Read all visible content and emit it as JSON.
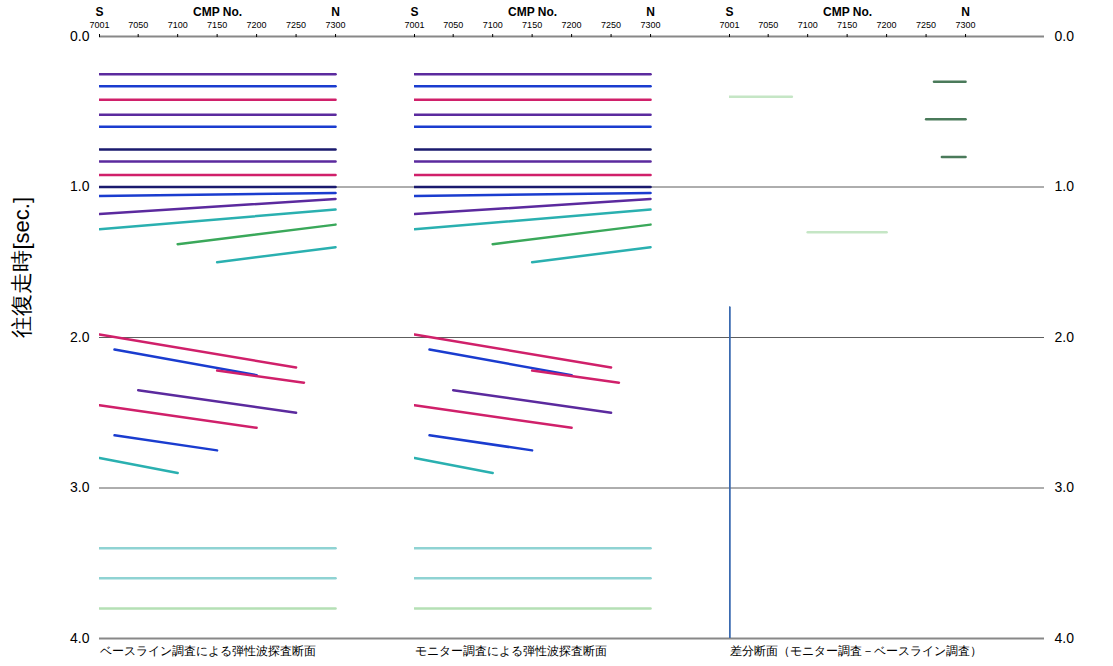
{
  "chart_data": {
    "type": "seismic_section",
    "y_label": "往復走時[sec.]",
    "ylim": [
      0,
      4
    ],
    "yticks": [
      {
        "value": 0,
        "label": "0.0"
      },
      {
        "value": 1,
        "label": "1.0"
      },
      {
        "value": 2,
        "label": "2.0"
      },
      {
        "value": 3,
        "label": "3.0"
      },
      {
        "value": 4,
        "label": "4.0"
      }
    ],
    "grid": true,
    "x_label": "CMP No.",
    "xlim": [
      7001,
      7400
    ],
    "xticks": [
      7001,
      7050,
      7100,
      7150,
      7200,
      7250,
      7300
    ],
    "x_direction": [
      "S",
      "N"
    ],
    "panels": [
      {
        "caption": "ベースライン調査による弾性波探査断面",
        "reflectors": [
          {
            "cmp": [
              7001,
              7300
            ],
            "time": [
              0.25,
              0.25
            ],
            "color": "#5b2a9e"
          },
          {
            "cmp": [
              7001,
              7300
            ],
            "time": [
              0.33,
              0.33
            ],
            "color": "#1a3ccf"
          },
          {
            "cmp": [
              7001,
              7300
            ],
            "time": [
              0.42,
              0.42
            ],
            "color": "#d0206a"
          },
          {
            "cmp": [
              7001,
              7300
            ],
            "time": [
              0.52,
              0.52
            ],
            "color": "#5b2a9e"
          },
          {
            "cmp": [
              7001,
              7300
            ],
            "time": [
              0.6,
              0.6
            ],
            "color": "#1a3ccf"
          },
          {
            "cmp": [
              7001,
              7300
            ],
            "time": [
              0.75,
              0.75
            ],
            "color": "#1a1a6e"
          },
          {
            "cmp": [
              7001,
              7300
            ],
            "time": [
              0.83,
              0.83
            ],
            "color": "#5b2a9e"
          },
          {
            "cmp": [
              7001,
              7300
            ],
            "time": [
              0.92,
              0.92
            ],
            "color": "#d0206a"
          },
          {
            "cmp": [
              7001,
              7300
            ],
            "time": [
              1.0,
              1.0
            ],
            "color": "#1a1a6e"
          },
          {
            "cmp": [
              7001,
              7300
            ],
            "time": [
              1.06,
              1.04
            ],
            "color": "#1a3ccf"
          },
          {
            "cmp": [
              7001,
              7300
            ],
            "time": [
              1.18,
              1.08
            ],
            "color": "#5b2a9e"
          },
          {
            "cmp": [
              7001,
              7300
            ],
            "time": [
              1.28,
              1.15
            ],
            "color": "#2ab0b0"
          },
          {
            "cmp": [
              7100,
              7300
            ],
            "time": [
              1.38,
              1.25
            ],
            "color": "#3aa85a"
          },
          {
            "cmp": [
              7150,
              7300
            ],
            "time": [
              1.5,
              1.4
            ],
            "color": "#2ab0b0"
          },
          {
            "cmp": [
              7001,
              7250
            ],
            "time": [
              1.98,
              2.2
            ],
            "color": "#d0206a"
          },
          {
            "cmp": [
              7020,
              7200
            ],
            "time": [
              2.08,
              2.25
            ],
            "color": "#1a3ccf"
          },
          {
            "cmp": [
              7150,
              7260
            ],
            "time": [
              2.22,
              2.3
            ],
            "color": "#d0206a"
          },
          {
            "cmp": [
              7050,
              7250
            ],
            "time": [
              2.35,
              2.5
            ],
            "color": "#5b2a9e"
          },
          {
            "cmp": [
              7001,
              7200
            ],
            "time": [
              2.45,
              2.6
            ],
            "color": "#d0206a"
          },
          {
            "cmp": [
              7020,
              7150
            ],
            "time": [
              2.65,
              2.75
            ],
            "color": "#1a3ccf"
          },
          {
            "cmp": [
              7001,
              7100
            ],
            "time": [
              2.8,
              2.9
            ],
            "color": "#2ab0b0"
          },
          {
            "cmp": [
              7001,
              7300
            ],
            "time": [
              3.4,
              3.4
            ],
            "color": "#8fd3d3"
          },
          {
            "cmp": [
              7001,
              7300
            ],
            "time": [
              3.6,
              3.6
            ],
            "color": "#8fd3d3"
          },
          {
            "cmp": [
              7001,
              7300
            ],
            "time": [
              3.8,
              3.8
            ],
            "color": "#b5e0b5"
          }
        ]
      },
      {
        "caption": "モニター調査による弾性波探査断面",
        "reflectors": [
          {
            "cmp": [
              7001,
              7300
            ],
            "time": [
              0.25,
              0.25
            ],
            "color": "#5b2a9e"
          },
          {
            "cmp": [
              7001,
              7300
            ],
            "time": [
              0.33,
              0.33
            ],
            "color": "#1a3ccf"
          },
          {
            "cmp": [
              7001,
              7300
            ],
            "time": [
              0.42,
              0.42
            ],
            "color": "#d0206a"
          },
          {
            "cmp": [
              7001,
              7300
            ],
            "time": [
              0.52,
              0.52
            ],
            "color": "#5b2a9e"
          },
          {
            "cmp": [
              7001,
              7300
            ],
            "time": [
              0.6,
              0.6
            ],
            "color": "#1a3ccf"
          },
          {
            "cmp": [
              7001,
              7300
            ],
            "time": [
              0.75,
              0.75
            ],
            "color": "#1a1a6e"
          },
          {
            "cmp": [
              7001,
              7300
            ],
            "time": [
              0.83,
              0.83
            ],
            "color": "#5b2a9e"
          },
          {
            "cmp": [
              7001,
              7300
            ],
            "time": [
              0.92,
              0.92
            ],
            "color": "#d0206a"
          },
          {
            "cmp": [
              7001,
              7300
            ],
            "time": [
              1.0,
              1.0
            ],
            "color": "#1a1a6e"
          },
          {
            "cmp": [
              7001,
              7300
            ],
            "time": [
              1.06,
              1.04
            ],
            "color": "#1a3ccf"
          },
          {
            "cmp": [
              7001,
              7300
            ],
            "time": [
              1.18,
              1.08
            ],
            "color": "#5b2a9e"
          },
          {
            "cmp": [
              7001,
              7300
            ],
            "time": [
              1.28,
              1.15
            ],
            "color": "#2ab0b0"
          },
          {
            "cmp": [
              7100,
              7300
            ],
            "time": [
              1.38,
              1.25
            ],
            "color": "#3aa85a"
          },
          {
            "cmp": [
              7150,
              7300
            ],
            "time": [
              1.5,
              1.4
            ],
            "color": "#2ab0b0"
          },
          {
            "cmp": [
              7001,
              7250
            ],
            "time": [
              1.98,
              2.2
            ],
            "color": "#d0206a"
          },
          {
            "cmp": [
              7020,
              7200
            ],
            "time": [
              2.08,
              2.25
            ],
            "color": "#1a3ccf"
          },
          {
            "cmp": [
              7150,
              7260
            ],
            "time": [
              2.22,
              2.3
            ],
            "color": "#d0206a"
          },
          {
            "cmp": [
              7050,
              7250
            ],
            "time": [
              2.35,
              2.5
            ],
            "color": "#5b2a9e"
          },
          {
            "cmp": [
              7001,
              7200
            ],
            "time": [
              2.45,
              2.6
            ],
            "color": "#d0206a"
          },
          {
            "cmp": [
              7020,
              7150
            ],
            "time": [
              2.65,
              2.75
            ],
            "color": "#1a3ccf"
          },
          {
            "cmp": [
              7001,
              7100
            ],
            "time": [
              2.8,
              2.9
            ],
            "color": "#2ab0b0"
          },
          {
            "cmp": [
              7001,
              7300
            ],
            "time": [
              3.4,
              3.4
            ],
            "color": "#8fd3d3"
          },
          {
            "cmp": [
              7001,
              7300
            ],
            "time": [
              3.6,
              3.6
            ],
            "color": "#8fd3d3"
          },
          {
            "cmp": [
              7001,
              7300
            ],
            "time": [
              3.8,
              3.8
            ],
            "color": "#b5e0b5"
          }
        ]
      },
      {
        "caption": "差分断面（モニター調査－ベースライン調査）",
        "reflectors": [
          {
            "cmp": [
              7260,
              7300
            ],
            "time": [
              0.3,
              0.3
            ],
            "color": "#4a7a5a"
          },
          {
            "cmp": [
              7250,
              7300
            ],
            "time": [
              0.55,
              0.55
            ],
            "color": "#4a7a5a"
          },
          {
            "cmp": [
              7270,
              7300
            ],
            "time": [
              0.8,
              0.8
            ],
            "color": "#4a7a5a"
          },
          {
            "cmp": [
              7001,
              7080
            ],
            "time": [
              0.4,
              0.4
            ],
            "color": "#c5e6c5"
          },
          {
            "cmp": [
              7100,
              7200
            ],
            "time": [
              1.3,
              1.3
            ],
            "color": "#c5e6c5"
          },
          {
            "cmp": [
              7001,
              7001
            ],
            "time": [
              1.8,
              4.0
            ],
            "color": "#3a6ab0"
          }
        ]
      }
    ]
  }
}
